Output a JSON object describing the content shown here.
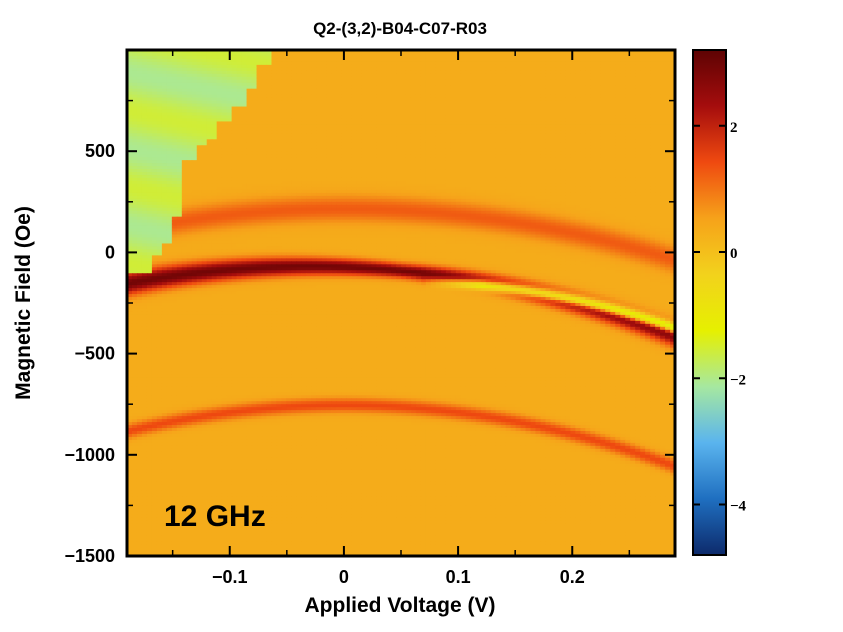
{
  "chart_data": {
    "type": "heatmap",
    "title": "Q2-(3,2)-B04-C07-R03",
    "xlabel": "Applied Voltage (V)",
    "ylabel": "Magnetic Field (Oe)",
    "xlim": [
      -0.19,
      0.29
    ],
    "ylim": [
      -1500,
      1000
    ],
    "xticks": [
      -0.1,
      0,
      0.1,
      0.2
    ],
    "xtick_labels": [
      "−0.1",
      "0",
      "0.1",
      "0.2"
    ],
    "yticks": [
      500,
      0,
      -500,
      -1000,
      -1500
    ],
    "ytick_labels": [
      "500",
      "0",
      "−500",
      "−1000",
      "−1500"
    ],
    "colorbar": {
      "range": [
        -4.8,
        3.2
      ],
      "ticks": [
        2,
        0,
        -2,
        -4
      ],
      "tick_labels": [
        "2",
        "0",
        "−2",
        "−4"
      ],
      "colormap": [
        "#0d2a6b",
        "#1f6fc0",
        "#5ab4ee",
        "#a6e8a0",
        "#e6f000",
        "#f2d21c",
        "#f6a21a",
        "#ef4a10",
        "#a50d0d",
        "#5e0303"
      ]
    },
    "annotation": "12 GHz",
    "background_value": 0.35,
    "features": [
      {
        "kind": "main-resonance",
        "peak": [
          -0.03,
          -70
        ],
        "curvature_oe_per_v2": 3300,
        "value": 2.6,
        "width_oe": 40
      },
      {
        "kind": "negative-branch",
        "x_range": [
          0.07,
          0.29
        ],
        "peak": [
          0.05,
          -140
        ],
        "curvature_oe_per_v2": 4100,
        "value": -3.5,
        "width_oe": 18
      },
      {
        "kind": "upper-band",
        "peak": [
          0.0,
          215
        ],
        "curvature_oe_per_v2": 3000,
        "value": 0.9,
        "width_oe": 45
      },
      {
        "kind": "lower-band",
        "peak": [
          0.0,
          -755
        ],
        "curvature_oe_per_v2": 3600,
        "value": 1.1,
        "width_oe": 25
      },
      {
        "kind": "blue-region",
        "corner": "top-left",
        "value": -1.8
      }
    ]
  }
}
